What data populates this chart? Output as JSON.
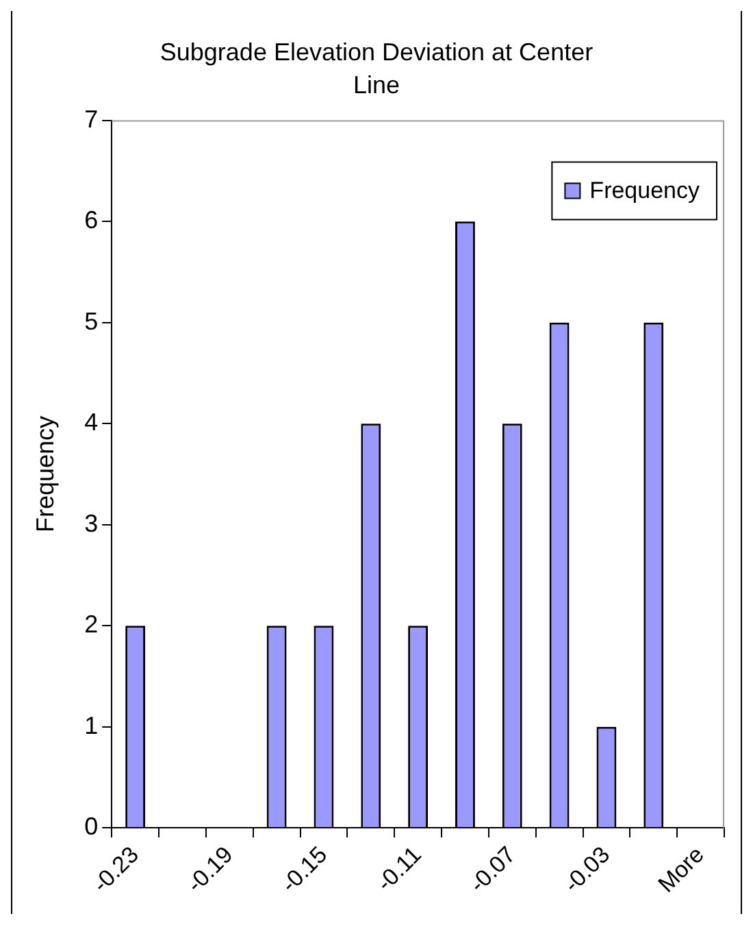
{
  "chart_data": {
    "type": "bar",
    "title": "Subgrade Elevation Deviation at Center Line",
    "ylabel": "Frequency",
    "categories": [
      "-0.23",
      null,
      "-0.19",
      null,
      "-0.15",
      null,
      "-0.11",
      null,
      "-0.07",
      null,
      "-0.03",
      null,
      "More"
    ],
    "series": [
      {
        "name": "Frequency",
        "color": "#9999ff",
        "values": [
          2,
          0,
          0,
          2,
          2,
          4,
          2,
          6,
          4,
          5,
          1,
          5,
          0
        ]
      }
    ],
    "ylim": [
      0,
      7
    ],
    "yticks": [
      0,
      1,
      2,
      3,
      4,
      5,
      6,
      7
    ],
    "grid": false,
    "legend": "top right"
  }
}
